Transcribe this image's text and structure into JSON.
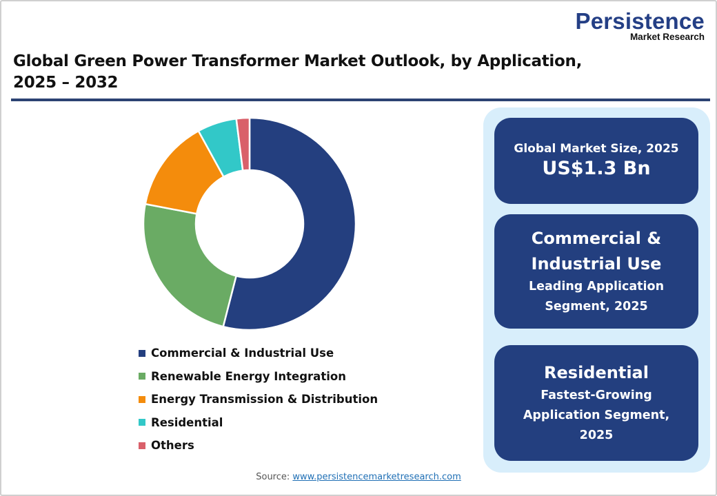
{
  "logo": {
    "main": "Persistence",
    "sub": "Market Research"
  },
  "header": {
    "title_line1": "Global Green Power Transformer Market Outlook, by Application,",
    "title_line2": "2025 – 2032"
  },
  "colors": {
    "navy": "#243f7f",
    "green": "#6aab64",
    "orange": "#f48c0c",
    "teal": "#32c8c8",
    "red": "#d9606a",
    "rule": "#2c4373",
    "panel_bg": "#d8eefb",
    "card_bg": "#233f7f"
  },
  "chart_data": {
    "type": "pie",
    "subtype": "donut",
    "title": "Global Green Power Transformer Market Outlook, by Application, 2025 – 2032",
    "categories": [
      "Commercial & Industrial Use",
      "Renewable Energy Integration",
      "Energy Transmission & Distribution",
      "Residential",
      "Others"
    ],
    "values": [
      54,
      24,
      14,
      6,
      2
    ],
    "unit": "% share (estimated from slice angles)",
    "colors": [
      "#243f7f",
      "#6aab64",
      "#f48c0c",
      "#32c8c8",
      "#d9606a"
    ],
    "start_angle": "top (12 o'clock), clockwise",
    "legend_position": "below chart"
  },
  "legend": [
    {
      "label": "Commercial & Industrial Use",
      "color": "#243f7f"
    },
    {
      "label": "Renewable Energy Integration",
      "color": "#6aab64"
    },
    {
      "label": "Energy Transmission & Distribution",
      "color": "#f48c0c"
    },
    {
      "label": "Residential",
      "color": "#32c8c8"
    },
    {
      "label": "Others",
      "color": "#d9606a"
    }
  ],
  "cards": {
    "market_size": {
      "label": "Global Market Size, 2025",
      "value": "US$1.3 Bn"
    },
    "leading": {
      "line1": "Commercial &",
      "line2": "Industrial Use",
      "sub1": "Leading Application",
      "sub2": "Segment, 2025"
    },
    "fastest": {
      "line1": "Residential",
      "sub1": "Fastest-Growing",
      "sub2": "Application Segment,",
      "sub3": "2025"
    }
  },
  "footer": {
    "source_label": "Source: ",
    "source_link": "www.persistencemarketresearch.com"
  }
}
